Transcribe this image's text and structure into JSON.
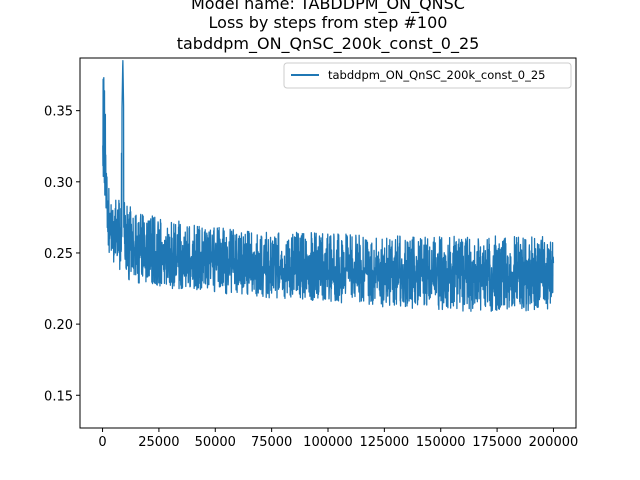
{
  "chart_data": {
    "type": "line",
    "title_lines": [
      "Model name: TABDDPM_ON_QNSC",
      "Loss by steps from step #100",
      "tabddpm_ON_QnSC_200k_const_0_25"
    ],
    "xlabel": "",
    "ylabel": "",
    "xlim": [
      -10000,
      210000
    ],
    "ylim": [
      0.127,
      0.387
    ],
    "x_ticks": [
      0,
      25000,
      50000,
      75000,
      100000,
      125000,
      150000,
      175000,
      200000
    ],
    "x_tick_labels": [
      "0",
      "25000",
      "50000",
      "75000",
      "100000",
      "125000",
      "150000",
      "175000",
      "200000"
    ],
    "y_ticks": [
      0.15,
      0.2,
      0.25,
      0.3,
      0.35
    ],
    "y_tick_labels": [
      "0.15",
      "0.20",
      "0.25",
      "0.30",
      "0.35"
    ],
    "grid": false,
    "legend_position": "top-right",
    "series": [
      {
        "name": "tabddpm_ON_QnSC_200k_const_0_25",
        "color": "#1f77b4",
        "envelope": {
          "x": [
            100,
            1000,
            2000,
            4000,
            6000,
            8000,
            9000,
            10000,
            15000,
            25000,
            50000,
            75000,
            100000,
            125000,
            150000,
            175000,
            200000
          ],
          "upper": [
            0.387,
            0.36,
            0.31,
            0.295,
            0.29,
            0.29,
            0.387,
            0.285,
            0.28,
            0.275,
            0.268,
            0.265,
            0.265,
            0.262,
            0.262,
            0.262,
            0.262
          ],
          "lower": [
            0.3,
            0.27,
            0.255,
            0.245,
            0.24,
            0.237,
            0.235,
            0.232,
            0.228,
            0.225,
            0.222,
            0.218,
            0.216,
            0.212,
            0.21,
            0.208,
            0.208
          ],
          "mean": [
            0.33,
            0.3,
            0.28,
            0.265,
            0.262,
            0.26,
            0.27,
            0.255,
            0.25,
            0.247,
            0.243,
            0.24,
            0.238,
            0.236,
            0.235,
            0.234,
            0.233
          ]
        }
      }
    ]
  }
}
